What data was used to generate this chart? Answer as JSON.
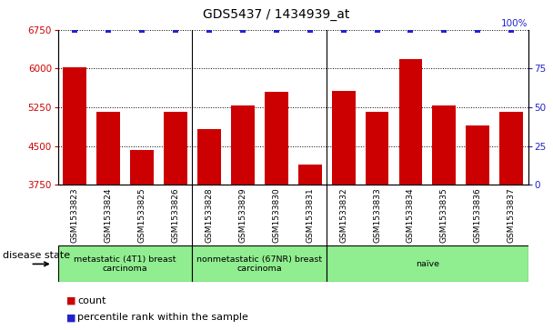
{
  "title": "GDS5437 / 1434939_at",
  "title_underline_word": "at",
  "samples": [
    "GSM1533823",
    "GSM1533824",
    "GSM1533825",
    "GSM1533826",
    "GSM1533828",
    "GSM1533829",
    "GSM1533830",
    "GSM1533831",
    "GSM1533832",
    "GSM1533833",
    "GSM1533834",
    "GSM1533835",
    "GSM1533836",
    "GSM1533837"
  ],
  "counts": [
    6020,
    5170,
    4430,
    5170,
    4830,
    5280,
    5550,
    4150,
    5560,
    5170,
    6180,
    5290,
    4900,
    5170
  ],
  "percentile_ranks": [
    100,
    100,
    100,
    100,
    100,
    100,
    100,
    100,
    100,
    100,
    100,
    100,
    100,
    100
  ],
  "ylim_left": [
    3750,
    6750
  ],
  "ylim_right": [
    0,
    100
  ],
  "yticks_left": [
    3750,
    4500,
    5250,
    6000,
    6750
  ],
  "yticks_right": [
    0,
    25,
    50,
    75,
    100
  ],
  "bar_color": "#cc0000",
  "dot_color": "#2222cc",
  "group_labels": [
    "metastatic (4T1) breast\ncarcinoma",
    "nonmetastatic (67NR) breast\ncarcinoma",
    "naïve"
  ],
  "group_ranges": [
    [
      0,
      4
    ],
    [
      4,
      8
    ],
    [
      8,
      14
    ]
  ],
  "green_color": "#90ee90",
  "gray_color": "#d0d0d0",
  "xlabel_text": "disease state",
  "legend_count_label": "count",
  "legend_percentile_label": "percentile rank within the sample",
  "bg_color": "#ffffff",
  "title_fontsize": 10,
  "tick_fontsize": 7.5,
  "axis_label_color_left": "#cc0000",
  "axis_label_color_right": "#2222cc",
  "dividers": [
    3.5,
    7.5
  ]
}
